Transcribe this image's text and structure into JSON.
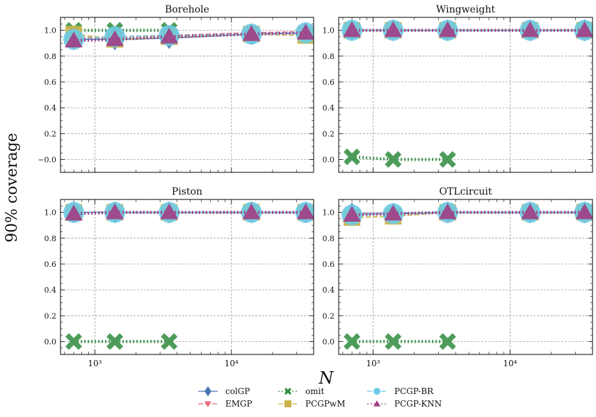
{
  "figure": {
    "ylabel": "90% coverage",
    "xlabel": "N"
  },
  "legend": [
    {
      "name": "colGP",
      "color": "#4a77b4",
      "marker": "diamond",
      "dash": "solid"
    },
    {
      "name": "EMGP",
      "color": "#e8687a",
      "marker": "tri-down",
      "dash": "dashed"
    },
    {
      "name": "omit",
      "color": "#2e8b3e",
      "marker": "x",
      "dash": "dotted"
    },
    {
      "name": "PCGPwM",
      "color": "#c9b447",
      "marker": "square",
      "dash": "dashed"
    },
    {
      "name": "PCGP-BR",
      "color": "#6ecbe6",
      "marker": "circle",
      "dash": "dashed"
    },
    {
      "name": "PCGP-KNN",
      "color": "#a23e84",
      "marker": "tri-up",
      "dash": "dotted"
    }
  ],
  "chart_data": [
    {
      "type": "line",
      "title": "Borehole",
      "xscale": "log",
      "xlim": [
        560,
        40000
      ],
      "ylim": [
        -0.1,
        1.1
      ],
      "yticks": [
        "−0.0",
        "0.2",
        "0.4",
        "0.6",
        "0.8",
        "1.0"
      ],
      "xticks": [
        "10³",
        "10⁴"
      ],
      "show_xticklabels": false,
      "x": [
        700,
        1400,
        3500,
        14000,
        35000
      ],
      "series": [
        {
          "name": "colGP",
          "values": [
            0.93,
            0.93,
            0.94,
            0.97,
            0.98
          ]
        },
        {
          "name": "EMGP",
          "values": [
            0.94,
            0.95,
            0.96,
            0.98,
            0.99
          ]
        },
        {
          "name": "omit",
          "values": [
            1.0,
            1.0,
            1.0,
            null,
            null
          ]
        },
        {
          "name": "PCGPwM",
          "values": [
            0.97,
            0.93,
            0.95,
            0.97,
            0.96
          ]
        },
        {
          "name": "PCGP-BR",
          "values": [
            0.93,
            0.95,
            0.96,
            0.97,
            0.98
          ]
        },
        {
          "name": "PCGP-KNN",
          "values": [
            0.92,
            0.93,
            0.95,
            0.97,
            0.98
          ]
        }
      ]
    },
    {
      "type": "line",
      "title": "Wingweight",
      "xscale": "log",
      "xlim": [
        560,
        40000
      ],
      "ylim": [
        -0.1,
        1.1
      ],
      "yticks": [
        "0.0",
        "0.2",
        "0.4",
        "0.6",
        "0.8",
        "1.0"
      ],
      "xticks": [
        "10³",
        "10⁴"
      ],
      "show_xticklabels": false,
      "x": [
        700,
        1400,
        3500,
        14000,
        35000
      ],
      "series": [
        {
          "name": "colGP",
          "values": [
            1.0,
            1.0,
            1.0,
            1.0,
            1.0
          ]
        },
        {
          "name": "EMGP",
          "values": [
            1.0,
            1.0,
            1.0,
            1.0,
            1.0
          ]
        },
        {
          "name": "omit",
          "values": [
            0.02,
            0.0,
            0.0,
            null,
            null
          ]
        },
        {
          "name": "PCGPwM",
          "values": [
            1.0,
            1.0,
            1.0,
            1.0,
            1.0
          ]
        },
        {
          "name": "PCGP-BR",
          "values": [
            1.0,
            1.0,
            1.0,
            1.0,
            1.0
          ]
        },
        {
          "name": "PCGP-KNN",
          "values": [
            1.0,
            1.0,
            1.0,
            1.0,
            1.0
          ]
        }
      ]
    },
    {
      "type": "line",
      "title": "Piston",
      "xscale": "log",
      "xlim": [
        560,
        40000
      ],
      "ylim": [
        -0.1,
        1.1
      ],
      "yticks": [
        "0.0",
        "0.2",
        "0.4",
        "0.6",
        "0.8",
        "1.0"
      ],
      "xticks": [
        "10³",
        "10⁴"
      ],
      "show_xticklabels": true,
      "x": [
        700,
        1400,
        3500,
        14000,
        35000
      ],
      "series": [
        {
          "name": "colGP",
          "values": [
            1.0,
            1.0,
            1.0,
            1.0,
            1.0
          ]
        },
        {
          "name": "EMGP",
          "values": [
            1.0,
            1.0,
            1.0,
            1.0,
            1.0
          ]
        },
        {
          "name": "omit",
          "values": [
            0.0,
            0.0,
            0.0,
            null,
            null
          ]
        },
        {
          "name": "PCGPwM",
          "values": [
            1.0,
            1.0,
            1.0,
            1.0,
            1.0
          ]
        },
        {
          "name": "PCGP-BR",
          "values": [
            1.0,
            1.0,
            1.0,
            1.0,
            1.0
          ]
        },
        {
          "name": "PCGP-KNN",
          "values": [
            0.99,
            1.0,
            1.0,
            1.0,
            1.0
          ]
        }
      ]
    },
    {
      "type": "line",
      "title": "OTLcircuit",
      "xscale": "log",
      "xlim": [
        560,
        40000
      ],
      "ylim": [
        -0.1,
        1.1
      ],
      "yticks": [
        "0.0",
        "0.2",
        "0.4",
        "0.6",
        "0.8",
        "1.0"
      ],
      "xticks": [
        "10³",
        "10⁴"
      ],
      "show_xticklabels": true,
      "x": [
        700,
        1400,
        3500,
        14000,
        35000
      ],
      "series": [
        {
          "name": "colGP",
          "values": [
            0.99,
            0.99,
            1.0,
            1.0,
            1.0
          ]
        },
        {
          "name": "EMGP",
          "values": [
            0.98,
            0.99,
            1.0,
            1.0,
            1.0
          ]
        },
        {
          "name": "omit",
          "values": [
            0.0,
            0.0,
            0.0,
            null,
            null
          ]
        },
        {
          "name": "PCGPwM",
          "values": [
            0.96,
            0.97,
            1.0,
            1.0,
            1.0
          ]
        },
        {
          "name": "PCGP-BR",
          "values": [
            0.98,
            0.99,
            1.0,
            1.0,
            1.0
          ]
        },
        {
          "name": "PCGP-KNN",
          "values": [
            0.98,
            0.99,
            1.0,
            1.0,
            1.0
          ]
        }
      ]
    }
  ]
}
